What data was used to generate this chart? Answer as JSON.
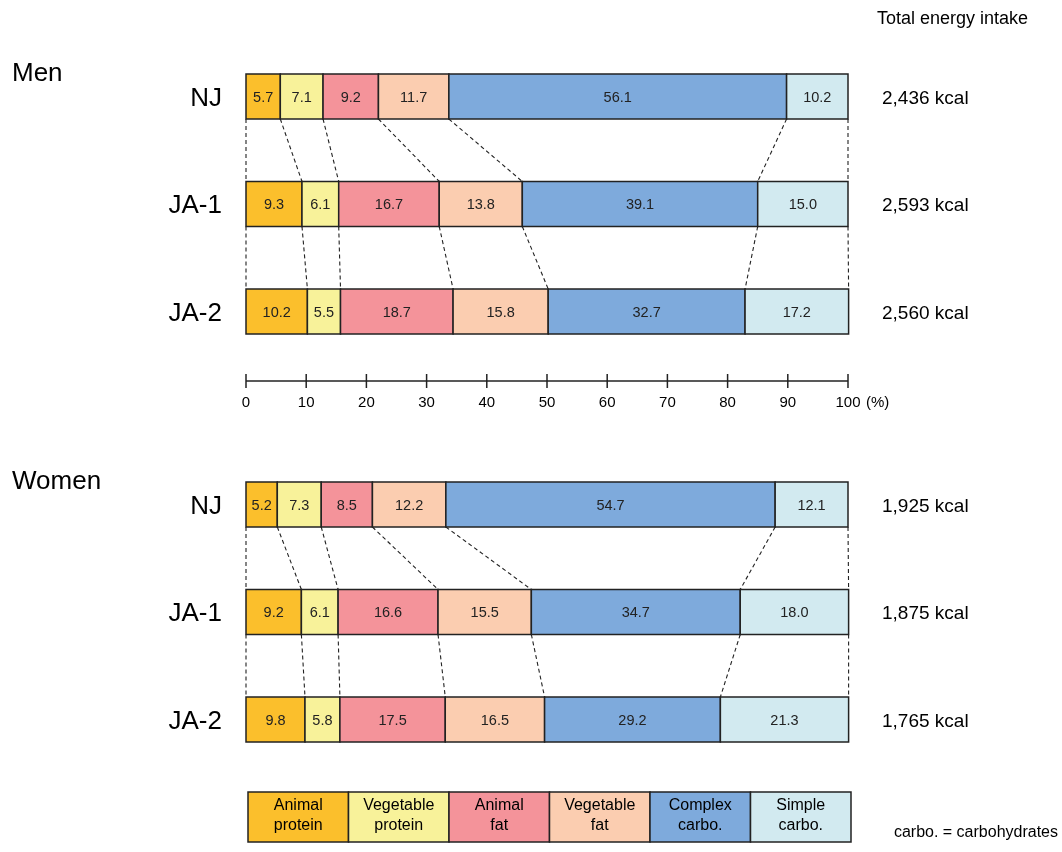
{
  "chart_data": [
    {
      "type": "bar",
      "orientation": "horizontal",
      "stacked": true,
      "title": "Men",
      "xlabel": "(%)",
      "categories": [
        "NJ",
        "JA-1",
        "JA-2"
      ],
      "xlim": [
        0,
        100
      ],
      "xticks": [
        0,
        10,
        20,
        30,
        40,
        50,
        60,
        70,
        80,
        90,
        100
      ],
      "legend": false,
      "series": [
        {
          "color": "#fbbf2c",
          "values": [
            5.7,
            9.3,
            10.2
          ],
          "value_labels": [
            "5.7",
            "9.3",
            "10.2"
          ]
        },
        {
          "color": "#f8f29a",
          "values": [
            7.1,
            6.1,
            5.5
          ],
          "value_labels": [
            "7.1",
            "6.1",
            "5.5"
          ]
        },
        {
          "color": "#f4939a",
          "values": [
            9.2,
            16.7,
            18.7
          ],
          "value_labels": [
            "9.2",
            "16.7",
            "18.7"
          ]
        },
        {
          "color": "#fbcdb0",
          "values": [
            11.7,
            13.8,
            15.8
          ],
          "value_labels": [
            "11.7",
            "13.8",
            "15.8"
          ]
        },
        {
          "color": "#7eaadc",
          "values": [
            56.1,
            39.1,
            32.7
          ],
          "value_labels": [
            "56.1",
            "39.1",
            "32.7"
          ]
        },
        {
          "color": "#d2eaf0",
          "values": [
            10.2,
            15.0,
            17.2
          ],
          "value_labels": [
            "10.2",
            "15.0",
            "17.2"
          ]
        }
      ],
      "annotations": [
        "Total energy intake",
        "2,436 kcal",
        "2,593 kcal",
        "2,560 kcal"
      ]
    },
    {
      "type": "bar",
      "orientation": "horizontal",
      "stacked": true,
      "title": "Women",
      "categories": [
        "NJ",
        "JA-1",
        "JA-2"
      ],
      "xlim": [
        0,
        100
      ],
      "tick_labels": "y",
      "legend": "bottom",
      "series": [
        {
          "name": "Animal protein",
          "color": "#fbbf2c",
          "values": [
            5.2,
            9.2,
            9.8
          ],
          "value_labels": [
            "5.2",
            "9.2",
            "9.8"
          ]
        },
        {
          "name": "Vegetable protein",
          "color": "#f8f29a",
          "values": [
            7.3,
            6.1,
            5.8
          ],
          "value_labels": [
            "7.3",
            "6.1",
            "5.8"
          ]
        },
        {
          "name": "Animal fat",
          "color": "#f4939a",
          "values": [
            8.5,
            16.6,
            17.5
          ],
          "value_labels": [
            "8.5",
            "16.6",
            "17.5"
          ]
        },
        {
          "name": "Vegetable fat",
          "color": "#fbcdb0",
          "values": [
            12.2,
            15.5,
            16.5
          ],
          "value_labels": [
            "12.2",
            "15.5",
            "16.5"
          ]
        },
        {
          "name": "Complex carbo.",
          "color": "#7eaadc",
          "values": [
            54.7,
            34.7,
            29.2
          ],
          "value_labels": [
            "54.7",
            "34.7",
            "29.2"
          ]
        },
        {
          "name": "Simple carbo.",
          "color": "#d2eaf0",
          "values": [
            12.1,
            18.0,
            21.3
          ],
          "value_labels": [
            "12.1",
            "18.0",
            "21.3"
          ]
        }
      ],
      "annotations": [
        "1,925 kcal",
        "1,875 kcal",
        "1,765 kcal",
        "carbo. = carbohydrates"
      ]
    }
  ]
}
